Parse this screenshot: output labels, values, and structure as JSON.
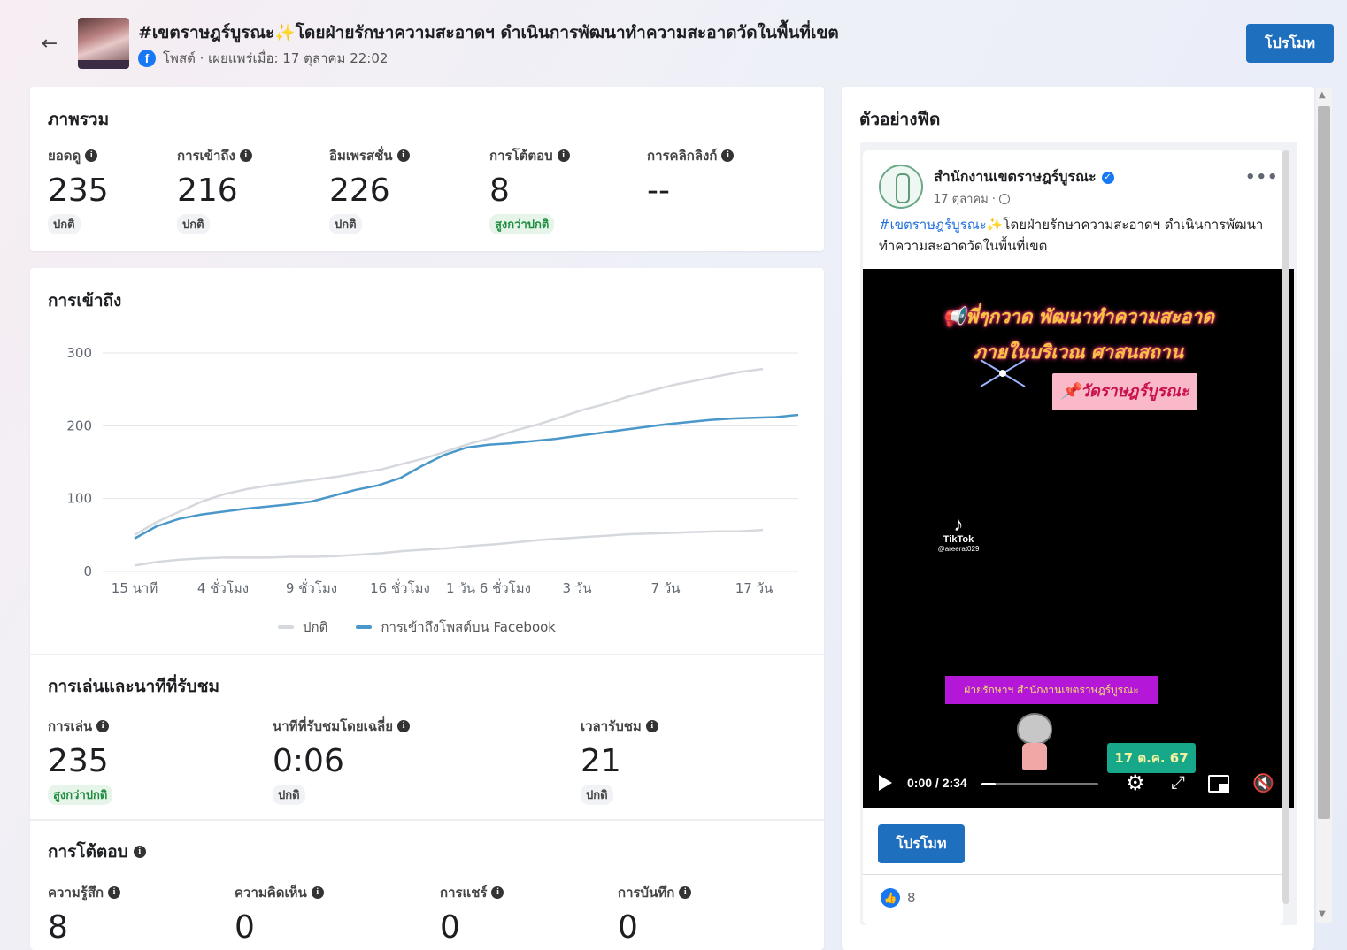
{
  "header": {
    "title": "#เขตราษฎร์บูรณะ✨โดยฝ่ายรักษาความสะอาดฯ ดำเนินการพัฒนาทำความสะอาดวัดในพื้นที่เขต",
    "meta": "โพสต์ · เผยแพร่เมื่อ: 17 ตุลาคม 22:02",
    "promote_label": "โปรโมท"
  },
  "overview": {
    "title": "ภาพรวม",
    "stats": [
      {
        "label": "ยอดดู",
        "value": "235",
        "badge": "ปกติ"
      },
      {
        "label": "การเข้าถึง",
        "value": "216",
        "badge": "ปกติ"
      },
      {
        "label": "อิมเพรสชั่น",
        "value": "226",
        "badge": "ปกติ"
      },
      {
        "label": "การโต้ตอบ",
        "value": "8",
        "badge": "สูงกว่าปกติ"
      },
      {
        "label": "การคลิกลิงก์",
        "value": "--",
        "badge": ""
      }
    ]
  },
  "reach": {
    "title": "การเข้าถึง",
    "legend_normal": "ปกติ",
    "legend_reach": "การเข้าถึงโพสต์บน Facebook"
  },
  "chart_data": {
    "type": "line",
    "title": "การเข้าถึง",
    "xlabel": "",
    "ylabel": "",
    "ylim": [
      0,
      300
    ],
    "yticks": [
      0,
      100,
      200,
      300
    ],
    "x_tick_labels": [
      "15 นาที",
      "4 ชั่วโมง",
      "9 ชั่วโมง",
      "16 ชั่วโมง",
      "1 วัน 6 ชั่วโมง",
      "3 วัน",
      "7 วัน",
      "17 วัน"
    ],
    "grid": true,
    "legend_position": "bottom",
    "colors": {
      "normal": "#d5d8dd",
      "reach": "#4a97c9"
    },
    "series": [
      {
        "name": "ปกติ",
        "color": "#d5d8dd",
        "values": [
          50,
          68,
          82,
          96,
          106,
          113,
          118,
          122,
          126,
          130,
          135,
          140,
          148,
          156,
          166,
          176,
          184,
          194,
          202,
          212,
          222,
          230,
          240,
          248,
          256,
          262,
          268,
          274,
          278
        ]
      },
      {
        "name": "",
        "color": "#d5d8dd",
        "values": [
          8,
          13,
          16,
          18,
          19,
          19,
          19,
          20,
          20,
          21,
          23,
          25,
          28,
          30,
          32,
          35,
          37,
          40,
          43,
          45,
          47,
          49,
          51,
          52,
          53,
          54,
          55,
          55,
          57
        ]
      },
      {
        "name": "การเข้าถึงโพสต์บน Facebook",
        "color": "#4a97c9",
        "values": [
          45,
          62,
          72,
          78,
          82,
          86,
          89,
          92,
          96,
          104,
          112,
          118,
          128,
          145,
          160,
          170,
          174,
          176,
          179,
          182,
          186,
          190,
          194,
          198,
          202,
          205,
          208,
          210,
          211,
          212,
          215
        ]
      }
    ]
  },
  "plays": {
    "title": "การเล่นและนาทีที่รับชม",
    "stats": [
      {
        "label": "การเล่น",
        "value": "235",
        "badge": "สูงกว่าปกติ"
      },
      {
        "label": "นาทีที่รับชมโดยเฉลี่ย",
        "value": "0:06",
        "badge": "ปกติ"
      },
      {
        "label": "เวลารับชม",
        "value": "21",
        "badge": "ปกติ"
      }
    ]
  },
  "engagement": {
    "title": "การโต้ตอบ",
    "stats": [
      {
        "label": "ความรู้สึก",
        "value": "8"
      },
      {
        "label": "ความคิดเห็น",
        "value": "0"
      },
      {
        "label": "การแชร์",
        "value": "0"
      },
      {
        "label": "การบันทึก",
        "value": "0"
      }
    ]
  },
  "preview": {
    "title": "ตัวอย่างฟีด",
    "page_name": "สำนักงานเขตราษฎร์บูรณะ",
    "date": "17 ตุลาคม ·",
    "hashtag": "#เขตราษฎร์บูรณะ",
    "text": "✨โดยฝ่ายรักษาความสะอาดฯ ดำเนินการพัฒนาทำความสะอาดวัดในพื้นที่เขต",
    "video": {
      "line1": "📢พี่ๆกวาด พัฒนาทำความสะอาด",
      "line2": "ภายในบริเวณ ศาสนสถาน",
      "tag": "📌วัดราษฎร์บูรณะ",
      "tiktok": "TikTok",
      "tiktok_user": "@areerat029",
      "banner": "ฝ่ายรักษาฯ สำนักงานเขตราษฎร์บูรณะ",
      "date_badge": "17 ต.ค. 67",
      "time": "0:00 / 2:34",
      "progress": 0.12
    },
    "promote_label": "โปรโมท",
    "reaction_count": "8"
  }
}
